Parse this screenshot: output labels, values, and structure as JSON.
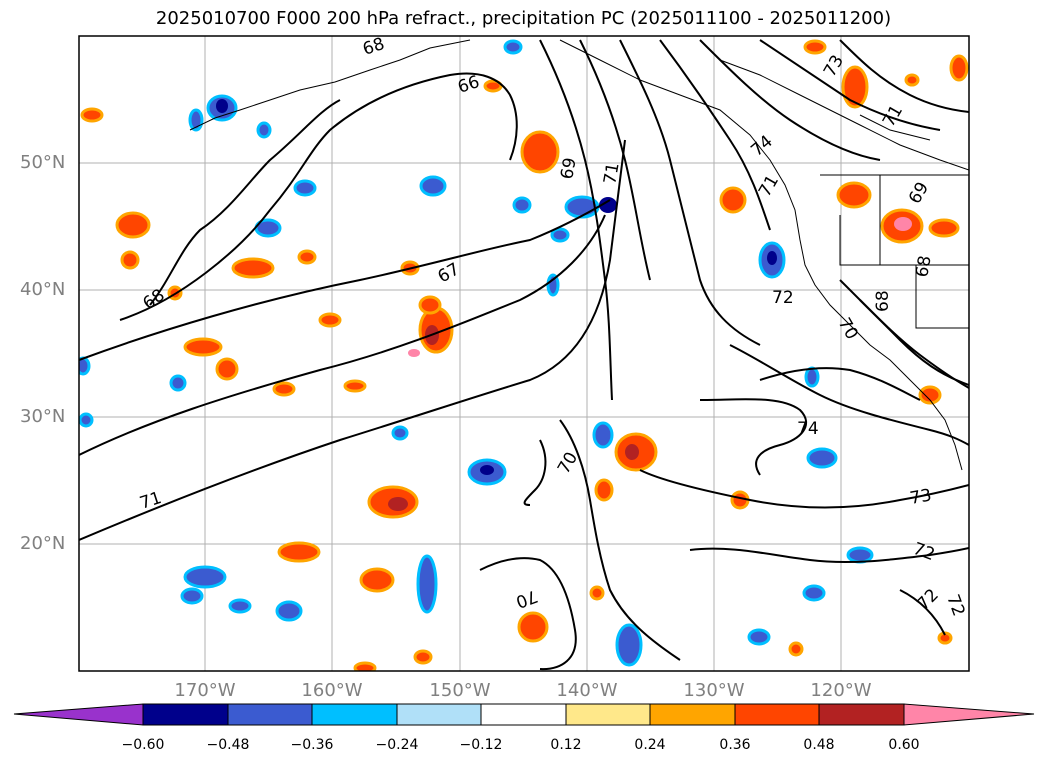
{
  "title": "2025010700 F000 200 hPa refract., precipitation PC (2025011100 - 2025011200)",
  "map": {
    "lat_labels": [
      "50°N",
      "40°N",
      "30°N",
      "20°N"
    ],
    "lon_labels": [
      "170°W",
      "160°W",
      "150°W",
      "140°W",
      "130°W",
      "120°W"
    ],
    "contour_labels": [
      "68",
      "66",
      "69",
      "71",
      "74",
      "71",
      "73",
      "71",
      "69",
      "68",
      "67",
      "68",
      "72",
      "70",
      "68",
      "74",
      "70",
      "73",
      "71",
      "72",
      "70",
      "72",
      "72"
    ]
  },
  "colorbar": {
    "ticks": [
      "−0.60",
      "−0.48",
      "−0.36",
      "−0.24",
      "−0.12",
      "0.12",
      "0.24",
      "0.36",
      "0.48",
      "0.60"
    ],
    "colors": [
      "#9932cc",
      "#00008b",
      "#3b5bd0",
      "#00bfff",
      "#b0e0f8",
      "#ffffff",
      "#ffe88a",
      "#ffa500",
      "#ff4500",
      "#b22222",
      "#ff85a8"
    ]
  }
}
